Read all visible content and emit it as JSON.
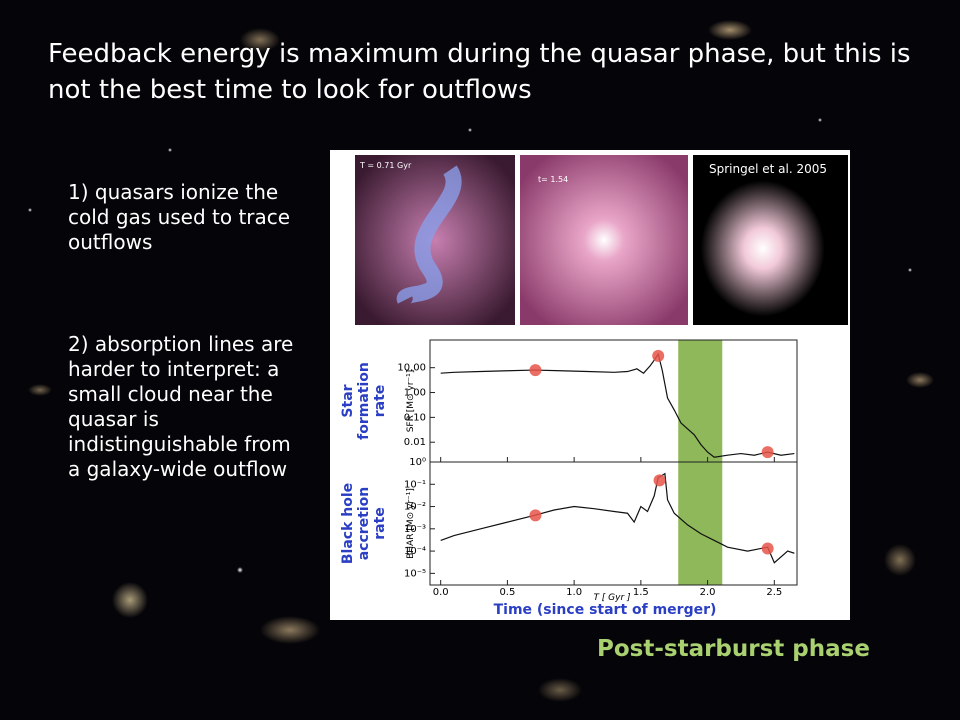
{
  "title": "Feedback energy is maximum during the quasar phase, but this is not the best time to look for outflows",
  "points": [
    "1) quasars ionize the cold gas used to trace outflows",
    "2) absorption lines are harder to interpret: a small cloud near the quasar is indistinguishable from a galaxy-wide outflow"
  ],
  "figure": {
    "panels": [
      "T = 0.71 Gyr",
      "t= 1.54",
      ""
    ],
    "credit": "Springel et al. 2005",
    "xlabel": "T [ Gyr ]",
    "xlabel_group": "Time (since start of merger)"
  },
  "chart_data": [
    {
      "type": "line",
      "group_label": [
        "Star",
        "formation",
        "rate"
      ],
      "ylabel": "SFR [M⊙ yr⁻¹]",
      "log_y": true,
      "xlim": [
        -0.08,
        2.67
      ],
      "ylim": [
        0.0016,
        130
      ],
      "yticks": [
        {
          "value": 10,
          "label": "10.00"
        },
        {
          "value": 1,
          "label": "1.00"
        },
        {
          "value": 0.1,
          "label": "0.10"
        },
        {
          "value": 0.01,
          "label": "0.01"
        }
      ],
      "band": [
        1.78,
        2.11
      ],
      "band_color": "#8fb85a",
      "series": [
        {
          "mark": "line",
          "color": "#111111",
          "x": [
            0,
            0.1,
            0.3,
            0.5,
            0.7,
            0.9,
            1.1,
            1.3,
            1.4,
            1.47,
            1.52,
            1.57,
            1.6,
            1.63,
            1.66,
            1.7,
            1.75,
            1.8,
            1.9,
            1.95,
            2.0,
            2.05,
            2.15,
            2.25,
            2.35,
            2.45,
            2.55,
            2.65
          ],
          "values": [
            6,
            6.5,
            7,
            7.5,
            8,
            7.5,
            7,
            6.5,
            7,
            9,
            6,
            12,
            20,
            35,
            8,
            0.6,
            0.2,
            0.06,
            0.02,
            0.008,
            0.004,
            0.0025,
            0.003,
            0.0035,
            0.003,
            0.004,
            0.003,
            0.0035
          ]
        },
        {
          "mark": "dot",
          "color": "#e8554a",
          "x": [
            0.71,
            1.63,
            2.45
          ],
          "values": [
            8,
            30,
            0.004
          ]
        }
      ]
    },
    {
      "type": "line",
      "group_label": [
        "Black hole",
        "accretion",
        "rate"
      ],
      "ylabel": "BHAR [M⊙ yr⁻¹]",
      "log_y": true,
      "xlim": [
        -0.08,
        2.67
      ],
      "ylim": [
        3e-06,
        1
      ],
      "yticks": [
        {
          "value": 1,
          "label": "10⁰"
        },
        {
          "value": 0.1,
          "label": "10⁻¹"
        },
        {
          "value": 0.01,
          "label": "10⁻²"
        },
        {
          "value": 0.001,
          "label": "10⁻³"
        },
        {
          "value": 0.0001,
          "label": "10⁻⁴"
        },
        {
          "value": 1e-05,
          "label": "10⁻⁵"
        }
      ],
      "xticks": [
        {
          "value": 0,
          "label": "0.0"
        },
        0.5,
        {
          "value": 1,
          "label": "1.0"
        },
        1.5,
        {
          "value": 2,
          "label": "2.0"
        },
        2.5
      ],
      "band": [
        1.78,
        2.11
      ],
      "band_color": "#8fb85a",
      "series": [
        {
          "mark": "line",
          "color": "#111111",
          "x": [
            0,
            0.1,
            0.3,
            0.5,
            0.7,
            0.85,
            1.0,
            1.15,
            1.3,
            1.4,
            1.45,
            1.5,
            1.55,
            1.6,
            1.63,
            1.66,
            1.68,
            1.7,
            1.75,
            1.85,
            1.95,
            2.05,
            2.15,
            2.3,
            2.45,
            2.5,
            2.6,
            2.65
          ],
          "values": [
            0.0003,
            0.0005,
            0.001,
            0.002,
            0.004,
            0.007,
            0.01,
            0.008,
            0.006,
            0.005,
            0.002,
            0.01,
            0.006,
            0.03,
            0.2,
            0.25,
            0.3,
            0.02,
            0.005,
            0.0015,
            0.0006,
            0.0003,
            0.00015,
            0.0001,
            0.00015,
            3e-05,
            0.0001,
            8e-05
          ]
        },
        {
          "mark": "dot",
          "color": "#e8554a",
          "x": [
            0.71,
            1.64,
            2.45
          ],
          "values": [
            0.004,
            0.15,
            0.00013
          ]
        }
      ]
    }
  ],
  "caption": "Post-starburst phase"
}
